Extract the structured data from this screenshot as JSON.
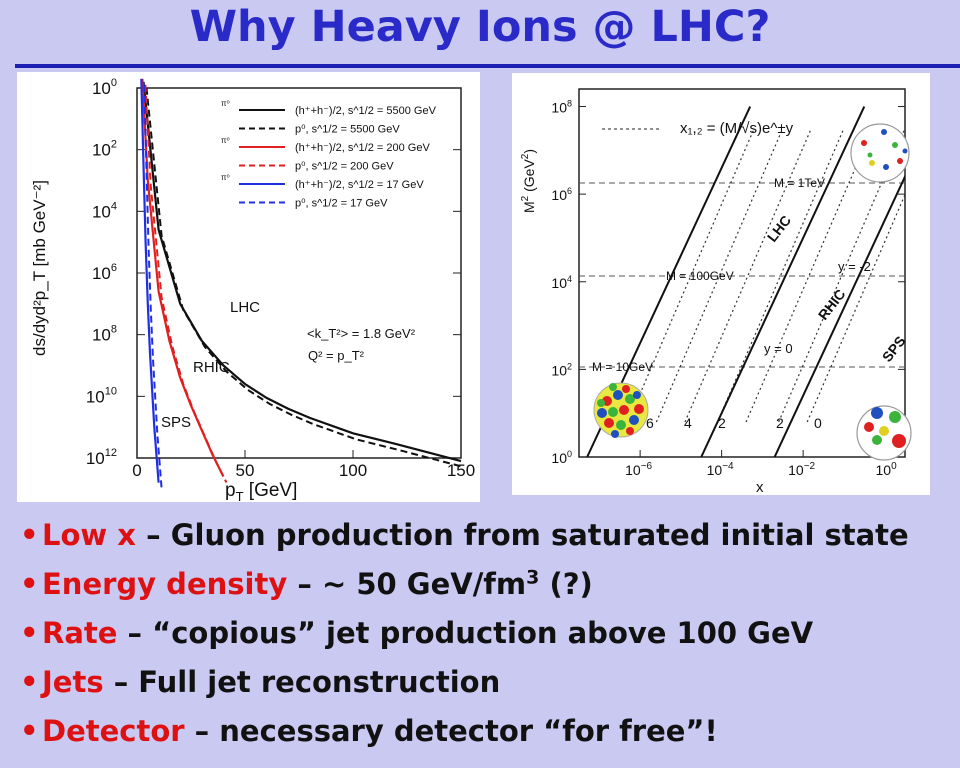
{
  "slide": {
    "title": "Why Heavy Ions @ LHC?",
    "bullets": [
      {
        "key": "Low x",
        "sep": " – ",
        "text": "Gluon production from saturated initial state"
      },
      {
        "key": "Energy density",
        "sep": " – ",
        "text": "~ 50 GeV/fm",
        "sup": "3",
        "tail": " (?)"
      },
      {
        "key": "Rate",
        "sep": " – ",
        "text": "“copious” jet production above 100 GeV"
      },
      {
        "key": "Jets",
        "sep": " – ",
        "text": "Full jet reconstruction"
      },
      {
        "key": "Detector",
        "sep": " – ",
        "text": "necessary detector “for free”!"
      }
    ],
    "colors": {
      "title": "#2a2ac8",
      "rule": "#1e1eb4",
      "background": "#c9c9f2",
      "bullet_key": "#dd1111"
    }
  },
  "chart_data": [
    {
      "type": "line",
      "xlabel_main": "p",
      "xlabel_sub": "T",
      "xlabel_unit": " [GeV]",
      "ylabel": "ds/dyd²p_T [mb GeV⁻²]",
      "xlim": [
        0,
        150
      ],
      "x_ticks": [
        "0",
        "50",
        "100",
        "150"
      ],
      "y_ticks": [
        {
          "base": "10",
          "exp": "0"
        },
        {
          "base": "10",
          "exp": "2"
        },
        {
          "base": "10",
          "exp": "4"
        },
        {
          "base": "10",
          "exp": "6"
        },
        {
          "base": "10",
          "exp": "8"
        },
        {
          "base": "10",
          "exp": "10"
        },
        {
          "base": "10",
          "exp": "12"
        }
      ],
      "legend": [
        {
          "prefix": "π⁰",
          "label": "(h⁺+h⁻)/2, s^1/2 = 5500 GeV",
          "color": "#111111",
          "dash": false
        },
        {
          "prefix": "",
          "label": "p⁰, s^1/2 = 5500 GeV",
          "color": "#111111",
          "dash": true
        },
        {
          "prefix": "π⁰",
          "label": "(h⁺+h⁻)/2, s^1/2 = 200 GeV",
          "color": "#e02020",
          "dash": false
        },
        {
          "prefix": "",
          "label": "p⁰, s^1/2 = 200 GeV",
          "color": "#e02020",
          "dash": true
        },
        {
          "prefix": "π⁰",
          "label": "(h⁺+h⁻)/2, s^1/2 = 17 GeV",
          "color": "#2030e0",
          "dash": false
        },
        {
          "prefix": "",
          "label": "p⁰, s^1/2 = 17 GeV",
          "color": "#2030e0",
          "dash": true
        }
      ],
      "annotations": [
        "LHC",
        "RHIC",
        "SPS",
        "<k_T²> = 1.8 GeV²",
        "Q² = p_T²"
      ],
      "series": [
        {
          "name": "LHC",
          "color": "#111111",
          "x": [
            3,
            10,
            20,
            30,
            40,
            50,
            60,
            70,
            80,
            100,
            120,
            150
          ],
          "y_exp": [
            -0.2,
            4.6,
            7.0,
            8.2,
            9.0,
            9.6,
            10.05,
            10.4,
            10.7,
            11.2,
            11.55,
            12.1
          ]
        },
        {
          "name": "RHIC",
          "color": "#e02020",
          "x": [
            2.5,
            5,
            10,
            15,
            20,
            25,
            30,
            35,
            40
          ],
          "y_exp": [
            -0.3,
            3.0,
            6.6,
            8.2,
            9.4,
            10.3,
            11.1,
            11.9,
            12.6
          ]
        },
        {
          "name": "SPS",
          "color": "#2030e0",
          "x": [
            2,
            3,
            4,
            5,
            6,
            8,
            10
          ],
          "y_exp": [
            -0.3,
            2.5,
            5.0,
            7.0,
            8.6,
            11.0,
            12.8
          ]
        }
      ]
    },
    {
      "type": "line",
      "xlabel": "x",
      "ylabel_main": "M",
      "ylabel_unit": "  (GeV",
      "formula": "x₁,₂ = (M/√s)e^±y",
      "x_ticks": [
        {
          "base": "10",
          "exp": "−6"
        },
        {
          "base": "10",
          "exp": "−4"
        },
        {
          "base": "10",
          "exp": "−2"
        },
        {
          "base": "10",
          "exp": "0"
        }
      ],
      "y_ticks": [
        {
          "base": "10",
          "exp": "8"
        },
        {
          "base": "10",
          "exp": "6"
        },
        {
          "base": "10",
          "exp": "4"
        },
        {
          "base": "10",
          "exp": "2"
        },
        {
          "base": "10",
          "exp": "0"
        }
      ],
      "mass_labels": [
        "M = 1TeV",
        "M = 100GeV",
        "M = 10GeV"
      ],
      "rapidity_labels": [
        "y = -2",
        "y = 0",
        "6",
        "4",
        "2",
        "2",
        "0"
      ],
      "series": [
        {
          "name": "LHC",
          "x_log": [
            -7.3,
            -3.3
          ],
          "y_log": [
            0,
            8
          ]
        },
        {
          "name": "RHIC",
          "x_log": [
            -4.5,
            -0.5
          ],
          "y_log": [
            0,
            8
          ]
        },
        {
          "name": "SPS",
          "x_log": [
            -2.7,
            1.3
          ],
          "y_log": [
            0,
            8
          ]
        }
      ]
    }
  ]
}
